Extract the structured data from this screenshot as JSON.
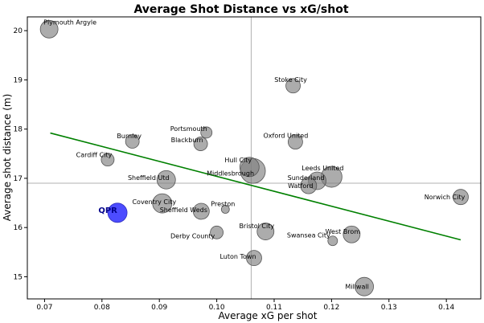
{
  "chart_data": {
    "type": "scatter",
    "title": "Average Shot Distance vs xG/shot",
    "xlabel": "Average xG per shot",
    "ylabel": "Average shot distance (m)",
    "xlim": [
      0.067,
      0.146
    ],
    "ylim": [
      14.55,
      20.28
    ],
    "xticks": [
      "0.07",
      "0.08",
      "0.09",
      "0.10",
      "0.11",
      "0.12",
      "0.13",
      "0.14"
    ],
    "yticks": [
      "15",
      "16",
      "17",
      "18",
      "19",
      "20"
    ],
    "mean_lines": {
      "x": 0.106,
      "y": 16.9
    },
    "trend_line": {
      "x": [
        0.071,
        0.1425
      ],
      "y": [
        17.92,
        15.75
      ],
      "color": "#008000"
    },
    "colors": {
      "point": "#808080",
      "highlight": "#0000ff",
      "highlight_label": "#00008b"
    },
    "points": [
      {
        "team": "Plymouth Argyle",
        "x": 0.0708,
        "y": 20.03,
        "size": 22
      },
      {
        "team": "Stoke City",
        "x": 0.1133,
        "y": 18.88,
        "size": 18
      },
      {
        "team": "Portsmouth",
        "x": 0.0982,
        "y": 17.93,
        "size": 14
      },
      {
        "team": "Burnley",
        "x": 0.0853,
        "y": 17.75,
        "size": 17
      },
      {
        "team": "Blackburn",
        "x": 0.0972,
        "y": 17.7,
        "size": 17
      },
      {
        "team": "Oxford United",
        "x": 0.1137,
        "y": 17.74,
        "size": 18
      },
      {
        "team": "Cardiff City",
        "x": 0.081,
        "y": 17.38,
        "size": 16
      },
      {
        "team": "Hull City",
        "x": 0.1057,
        "y": 17.23,
        "size": 24
      },
      {
        "team": "Middlesbrough",
        "x": 0.1063,
        "y": 17.15,
        "size": 31
      },
      {
        "team": "Leeds United",
        "x": 0.12,
        "y": 17.03,
        "size": 26
      },
      {
        "team": "Sunderland",
        "x": 0.1175,
        "y": 16.95,
        "size": 22
      },
      {
        "team": "Sheffield Utd",
        "x": 0.0912,
        "y": 16.97,
        "size": 23
      },
      {
        "team": "Watford",
        "x": 0.116,
        "y": 16.85,
        "size": 20
      },
      {
        "team": "Norwich City",
        "x": 0.1425,
        "y": 16.62,
        "size": 19
      },
      {
        "team": "Coventry City",
        "x": 0.0905,
        "y": 16.49,
        "size": 24
      },
      {
        "team": "Preston",
        "x": 0.1015,
        "y": 16.37,
        "size": 10
      },
      {
        "team": "Sheffield Weds",
        "x": 0.0973,
        "y": 16.33,
        "size": 20
      },
      {
        "team": "QPR",
        "x": 0.0827,
        "y": 16.3,
        "size": 24,
        "highlight": true
      },
      {
        "team": "Bristol City",
        "x": 0.1085,
        "y": 15.92,
        "size": 21
      },
      {
        "team": "Derby County",
        "x": 0.1,
        "y": 15.9,
        "size": 16
      },
      {
        "team": "West Brom",
        "x": 0.1235,
        "y": 15.86,
        "size": 21
      },
      {
        "team": "Swansea City",
        "x": 0.1202,
        "y": 15.73,
        "size": 12
      },
      {
        "team": "Luton Town",
        "x": 0.1065,
        "y": 15.38,
        "size": 19
      },
      {
        "team": "Millwall",
        "x": 0.1257,
        "y": 14.8,
        "size": 23
      }
    ]
  }
}
